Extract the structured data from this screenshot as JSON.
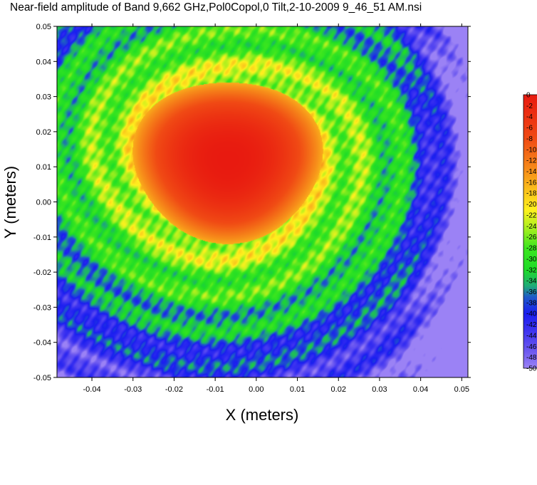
{
  "chart_data": {
    "type": "heatmap",
    "title": "Near-field amplitude of Band 9,662 GHz,Pol0Copol,0 Tilt,2-10-2009 9_46_51 AM.nsi",
    "xlabel": "X (meters)",
    "ylabel": "Y (meters)",
    "xlim": [
      -0.05,
      0.05
    ],
    "ylim": [
      -0.05,
      0.05
    ],
    "x_ticks": [
      "-0.04",
      "-0.03",
      "-0.02",
      "-0.01",
      "0.00",
      "0.01",
      "0.02",
      "0.03",
      "0.04",
      "0.05"
    ],
    "x_tick_values": [
      -0.04,
      -0.03,
      -0.02,
      -0.01,
      0.0,
      0.01,
      0.02,
      0.03,
      0.04,
      0.05
    ],
    "y_ticks": [
      "0.05",
      "0.04",
      "0.03",
      "0.02",
      "0.01",
      "0.00",
      "-0.01",
      "-0.02",
      "-0.03",
      "-0.04",
      "-0.05"
    ],
    "y_tick_values": [
      0.05,
      0.04,
      0.03,
      0.02,
      0.01,
      0.0,
      -0.01,
      -0.02,
      -0.03,
      -0.04,
      -0.05
    ],
    "colorbar": {
      "range": [
        -50,
        0
      ],
      "labels": [
        "0",
        "-2",
        "-4",
        "-6",
        "-8",
        "-10",
        "-12",
        "-14",
        "-16",
        "-18",
        "-20",
        "-22",
        "-24",
        "-26",
        "-28",
        "-30",
        "-32",
        "-34",
        "-36",
        "-38",
        "-40",
        "-42",
        "-44",
        "-46",
        "-48",
        "-50"
      ],
      "stops": [
        {
          "value": 0,
          "color": "#e81a10"
        },
        {
          "value": -8,
          "color": "#f04a14"
        },
        {
          "value": -14,
          "color": "#f7901a"
        },
        {
          "value": -18,
          "color": "#fbc81c"
        },
        {
          "value": -21,
          "color": "#fff01e"
        },
        {
          "value": -24,
          "color": "#b4f01e"
        },
        {
          "value": -28,
          "color": "#3ce61e"
        },
        {
          "value": -32,
          "color": "#1edc28"
        },
        {
          "value": -35,
          "color": "#1eaa78"
        },
        {
          "value": -37,
          "color": "#1e5ac8"
        },
        {
          "value": -40,
          "color": "#1a1ef0"
        },
        {
          "value": -43,
          "color": "#3c32f0"
        },
        {
          "value": -47,
          "color": "#6e5af0"
        },
        {
          "value": -50,
          "color": "#9b82f5"
        }
      ]
    },
    "main_beam": {
      "center_x": -0.007,
      "center_y": 0.012,
      "peak_db": 0,
      "radius": 0.023
    },
    "floor_db": -50
  }
}
